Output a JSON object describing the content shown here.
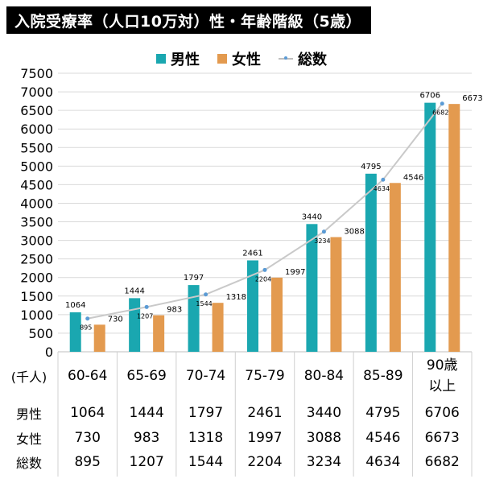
{
  "title": "入院受療率（人口10万対）性・年齢階級（5歳）",
  "legend": {
    "male": "男性",
    "female": "女性",
    "total": "総数"
  },
  "colors": {
    "male": "#1aa7b0",
    "female": "#e39a4f",
    "total_line": "#c9c9c9",
    "total_marker": "#5b9bd5",
    "grid": "#d9d9d9"
  },
  "table": {
    "unit_label": "(千人)",
    "row_labels": [
      "男性",
      "女性",
      "総数"
    ],
    "rows": [
      [
        "1064",
        "1444",
        "1797",
        "2461",
        "3440",
        "4795",
        "6706"
      ],
      [
        "730",
        "983",
        "1318",
        "1997",
        "3088",
        "4546",
        "6673"
      ],
      [
        "895",
        "1207",
        "1544",
        "2204",
        "3234",
        "4634",
        "6682"
      ]
    ]
  },
  "chart_data": {
    "type": "bar",
    "title": "入院受療率（人口10万対）性・年齢階級（5歳）",
    "categories": [
      "60-64",
      "65-69",
      "70-74",
      "75-79",
      "80-84",
      "85-89",
      "90歳 以上"
    ],
    "series": [
      {
        "name": "男性",
        "type": "bar",
        "values": [
          1064,
          1444,
          1797,
          2461,
          3440,
          4795,
          6706
        ]
      },
      {
        "name": "女性",
        "type": "bar",
        "values": [
          730,
          983,
          1318,
          1997,
          3088,
          4546,
          6673
        ]
      },
      {
        "name": "総数",
        "type": "line",
        "values": [
          895,
          1207,
          1544,
          2204,
          3234,
          4634,
          6682
        ]
      }
    ],
    "yticks": [
      "0",
      "500",
      "1000",
      "1500",
      "2000",
      "2500",
      "3000",
      "3500",
      "4000",
      "4500",
      "5000",
      "5500",
      "6000",
      "6500",
      "7000",
      "7500"
    ],
    "ylim": [
      0,
      7500
    ],
    "grid": true,
    "legend_position": "top-center"
  }
}
